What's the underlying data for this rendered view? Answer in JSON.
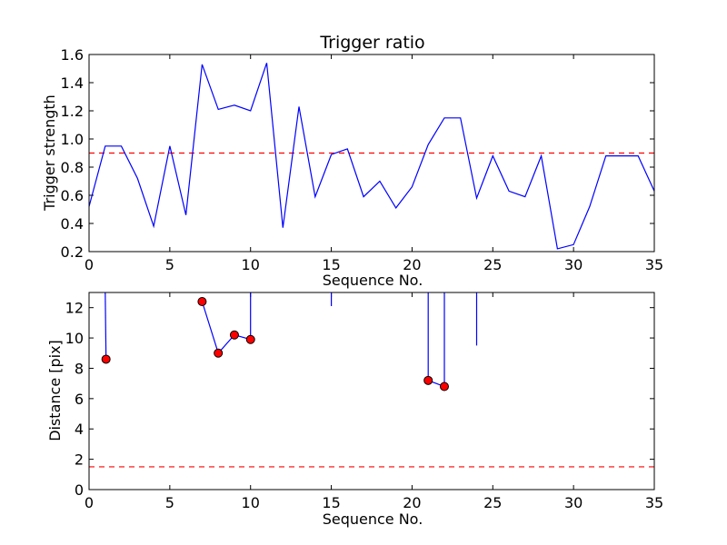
{
  "chart_data": [
    {
      "type": "line",
      "title": "Trigger ratio",
      "xlabel": "Sequence No.",
      "ylabel": "Trigger strength",
      "xlim": [
        0,
        35
      ],
      "ylim": [
        0.2,
        1.6
      ],
      "xticks": [
        0,
        5,
        10,
        15,
        20,
        25,
        30,
        35
      ],
      "yticks": [
        0.2,
        0.4,
        0.6,
        0.8,
        1.0,
        1.2,
        1.4,
        1.6
      ],
      "ytick_labels": [
        "0.2",
        "0.4",
        "0.6",
        "0.8",
        "1.0",
        "1.2",
        "1.4",
        "1.6"
      ],
      "threshold": 0.9,
      "line_color": "#0000ff",
      "threshold_color": "#ff0000",
      "series": [
        {
          "x": [
            0,
            1,
            2,
            3,
            4,
            5,
            6,
            7,
            8,
            9,
            10,
            11,
            12,
            13,
            14,
            15,
            16,
            17,
            18,
            19,
            20,
            21,
            22,
            23,
            24,
            25,
            26,
            27,
            28,
            29,
            30,
            31,
            32,
            33,
            34,
            35
          ],
          "values": [
            0.52,
            0.95,
            0.95,
            0.72,
            0.38,
            0.95,
            0.46,
            1.53,
            1.21,
            1.24,
            1.2,
            1.54,
            0.37,
            1.23,
            0.59,
            0.89,
            0.93,
            0.59,
            0.7,
            0.51,
            0.66,
            0.96,
            1.15,
            1.15,
            0.58,
            0.88,
            0.63,
            0.59,
            0.88,
            0.22,
            0.25,
            0.52,
            0.88,
            0.88,
            0.88,
            0.63
          ]
        }
      ]
    },
    {
      "type": "line",
      "title": "",
      "xlabel": "Sequence No.",
      "ylabel": "Distance [pix]",
      "xlim": [
        0,
        35
      ],
      "ylim": [
        0,
        13
      ],
      "xticks": [
        0,
        5,
        10,
        15,
        20,
        25,
        30,
        35
      ],
      "yticks": [
        0,
        2,
        4,
        6,
        8,
        10,
        12
      ],
      "threshold": 1.5,
      "line_color": "#0000ff",
      "marker_color": "#ff0000",
      "threshold_color": "#ff0000",
      "segments": [
        [
          [
            1,
            13
          ],
          [
            1.05,
            8.6
          ]
        ],
        [
          [
            7,
            12.4
          ],
          [
            8,
            9.0
          ],
          [
            9,
            10.2
          ],
          [
            10,
            9.9
          ],
          [
            10,
            13
          ]
        ],
        [
          [
            15,
            13
          ],
          [
            15,
            12.1
          ]
        ],
        [
          [
            21,
            13
          ],
          [
            21,
            7.2
          ],
          [
            22,
            6.8
          ],
          [
            22,
            13
          ]
        ],
        [
          [
            24,
            13
          ],
          [
            24,
            9.5
          ]
        ]
      ],
      "markers": [
        [
          1.05,
          8.6
        ],
        [
          7,
          12.4
        ],
        [
          8,
          9.0
        ],
        [
          9,
          10.2
        ],
        [
          10,
          9.9
        ],
        [
          21,
          7.2
        ],
        [
          22,
          6.8
        ]
      ]
    }
  ]
}
